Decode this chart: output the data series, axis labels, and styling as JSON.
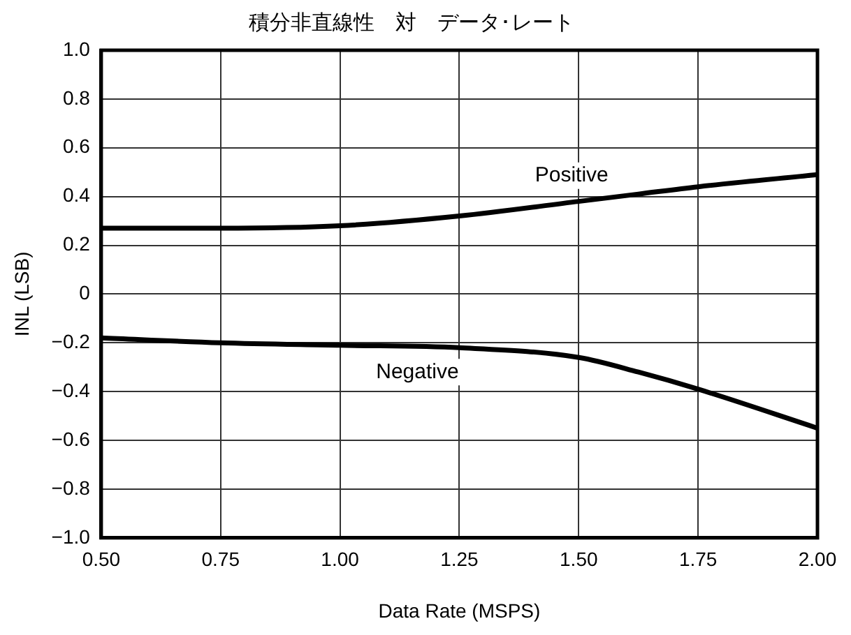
{
  "chart_data": {
    "type": "line",
    "title": "積分非直線性　対　データ･レート",
    "xlabel": "Data Rate (MSPS)",
    "ylabel": "INL (LSB)",
    "xlim": [
      0.5,
      2.0
    ],
    "xticks": [
      {
        "value": 0.5,
        "label": "0.50"
      },
      {
        "value": 0.75,
        "label": "0.75"
      },
      {
        "value": 1,
        "label": "1.00"
      },
      {
        "value": 1.25,
        "label": "1.25"
      },
      {
        "value": 1.5,
        "label": "1.50"
      },
      {
        "value": 1.75,
        "label": "1.75"
      },
      {
        "value": 2,
        "label": "2.00"
      }
    ],
    "ylim": [
      -1,
      1
    ],
    "yticks": [
      {
        "value": -1,
        "label": "−1.0"
      },
      {
        "value": -0.8,
        "label": "−0.8"
      },
      {
        "value": -0.6,
        "label": "−0.6"
      },
      {
        "value": -0.4,
        "label": "−0.4"
      },
      {
        "value": -0.2,
        "label": "−0.2"
      },
      0,
      0.2,
      0.4,
      0.6,
      0.8,
      {
        "value": 1,
        "label": "1.0"
      }
    ],
    "x": [
      0.5,
      0.75,
      1.0,
      1.25,
      1.5,
      1.625,
      1.75,
      2.0
    ],
    "series": [
      {
        "name": "Positive",
        "color": "#000000",
        "values": [
          0.27,
          0.27,
          0.28,
          0.32,
          0.38,
          0.41,
          0.44,
          0.49
        ]
      },
      {
        "name": "Negative",
        "color": "#000000",
        "values": [
          -0.18,
          -0.2,
          -0.21,
          -0.22,
          -0.26,
          -0.32,
          -0.39,
          -0.55
        ]
      }
    ],
    "grid": true,
    "legend": false,
    "marker": "none",
    "line_style": "solid"
  }
}
